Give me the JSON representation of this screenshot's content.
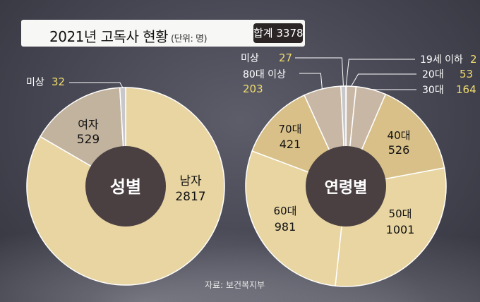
{
  "title": "2021년 고독사 현황",
  "unit": "(단위: 명)",
  "total_label": "합계 3378",
  "source": "자료: 보건복지부",
  "colors": {
    "main": "#e8d5a2",
    "female": "#c2b39f",
    "age_mid": "#d8c088",
    "age_light": "#c8b7a4",
    "unknown": "#c8c8cc",
    "hole": "#4a4042",
    "highlight": "#f0dc6e"
  },
  "chart_data": [
    {
      "type": "pie",
      "title": "성별",
      "slices": [
        {
          "label": "남자",
          "value": 2817
        },
        {
          "label": "여자",
          "value": 529
        },
        {
          "label": "미상",
          "value": 32
        }
      ]
    },
    {
      "type": "pie",
      "title": "연령별",
      "slices": [
        {
          "label": "19세 이하",
          "value": 2
        },
        {
          "label": "20대",
          "value": 53
        },
        {
          "label": "30대",
          "value": 164
        },
        {
          "label": "40대",
          "value": 526
        },
        {
          "label": "50대",
          "value": 1001
        },
        {
          "label": "60대",
          "value": 981
        },
        {
          "label": "70대",
          "value": 421
        },
        {
          "label": "80대 이상",
          "value": 203
        },
        {
          "label": "미상",
          "value": 27
        }
      ]
    }
  ]
}
